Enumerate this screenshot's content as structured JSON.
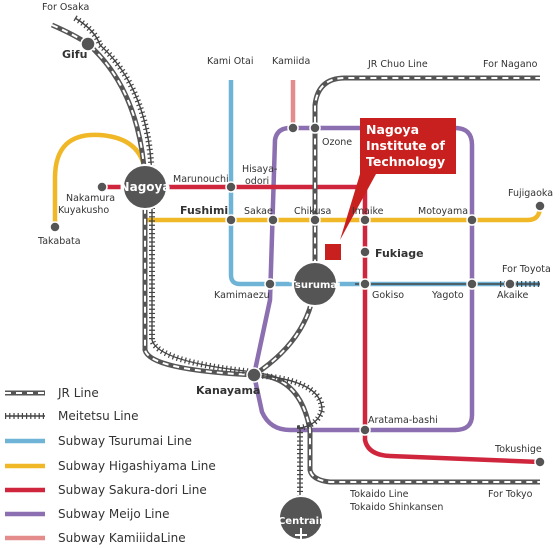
{
  "directions": {
    "osaka": "For Osaka",
    "nagano": "For Nagano",
    "toyota": "For Toyota",
    "tokyo": "For Tokyo",
    "jr_chuo": "JR Chuo Line",
    "tokaido": "Tokaido Line",
    "shinkansen": "Tokaido Shinkansen"
  },
  "stations": {
    "gifu": "Gifu",
    "nagoya": "Nagoya",
    "tsurumai": "Tsurumai",
    "centrair": "Centrair",
    "kanayama": "Kanayama",
    "kami_otai": "Kami Otai",
    "kamiida": "Kamiida",
    "ozone": "Ozone",
    "marunouchi": "Marunouchi",
    "hisaya_1": "Hisaya-",
    "hisaya_2": "odori",
    "nakamura_1": "Nakamura",
    "nakamura_2": "Kuyakusho",
    "takabata": "Takabata",
    "fushimi": "Fushimi",
    "sakae": "Sakae",
    "chikusa": "Chikusa",
    "imaike": "Imaike",
    "motoyama": "Motoyama",
    "fujigaoka": "Fujigaoka",
    "fukiage": "Fukiage",
    "kamimaezu": "Kamimaezu",
    "gokiso": "Gokiso",
    "yagoto": "Yagoto",
    "akaike": "Akaike",
    "aratama": "Aratama-bashi",
    "tokushige": "Tokushige"
  },
  "callout": {
    "line1": "Nagoya",
    "line2": "Institute of",
    "line3": "Technology",
    "color": "#c8201e"
  },
  "legend": [
    {
      "label": "JR Line",
      "style": "jr"
    },
    {
      "label": "Meitetsu Line",
      "style": "meitetsu"
    },
    {
      "label": "Subway Tsurumai Line",
      "color": "#6fb3d6"
    },
    {
      "label": "Subway Higashiyama Line",
      "color": "#f0b727"
    },
    {
      "label": "Subway Sakura-dori Line",
      "color": "#d0263d"
    },
    {
      "label": "Subway Meijo Line",
      "color": "#8b6fb0"
    },
    {
      "label": "Subway KamiiidaLine",
      "color": "#e48b8b"
    }
  ],
  "line_colors": {
    "tsurumai": "#6fb3d6",
    "higashiyama": "#f0b727",
    "sakuradori": "#d0263d",
    "meijo": "#8b6fb0",
    "kamiiida": "#e48b8b",
    "jr": "#555555",
    "meitetsu": "#444444",
    "hub": "#555555"
  }
}
